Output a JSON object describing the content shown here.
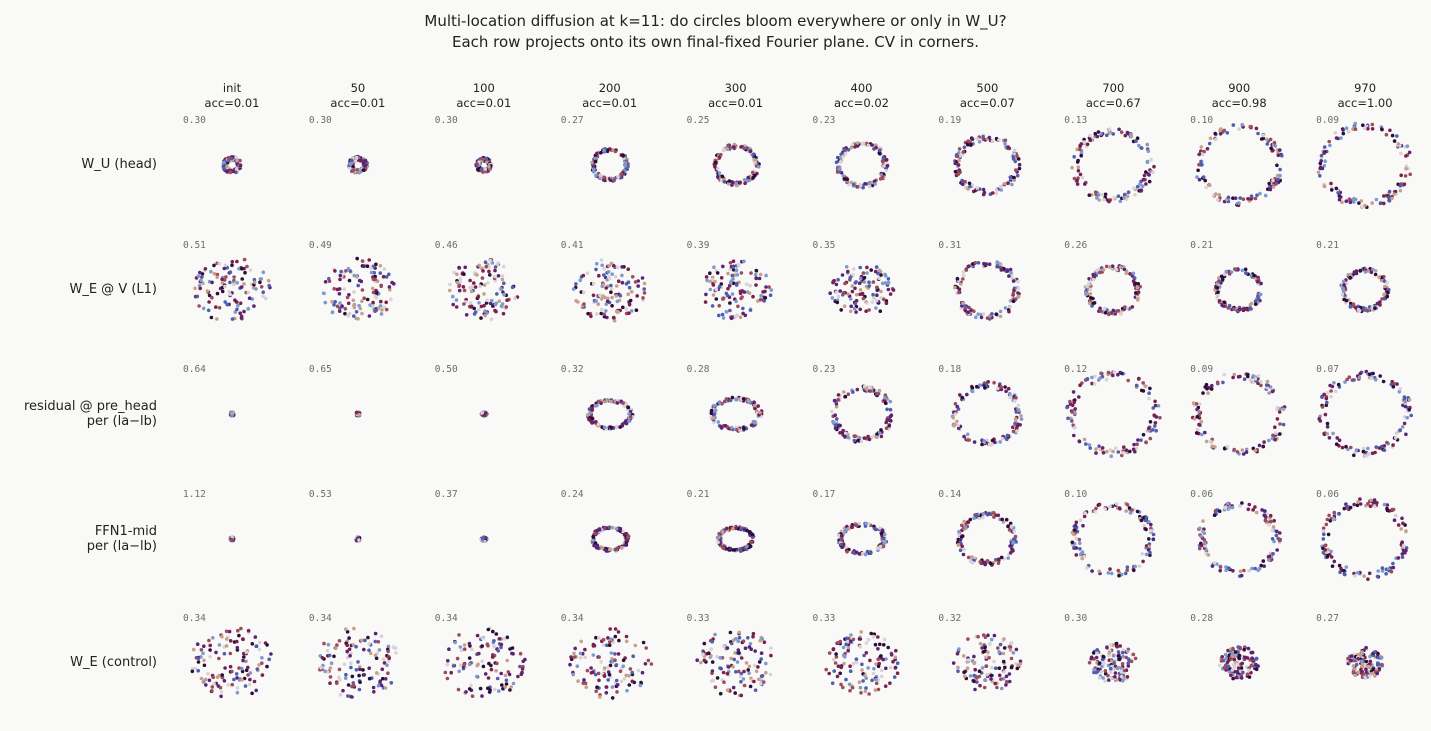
{
  "title_line1": "Multi-location diffusion at k=11: do circles bloom everywhere or only in W_U?",
  "title_line2": "Each row projects onto its own final-fixed Fourier plane. CV in corners.",
  "colors": {
    "background": "#f9f9f7",
    "palette": [
      "#2b0f3a",
      "#5a2476",
      "#9c4c5c",
      "#c8a08a",
      "#d9d2d6",
      "#7c9ad0",
      "#4c5fb0",
      "#7a1f4f"
    ]
  },
  "chart_data": {
    "type": "scatter",
    "columns": [
      {
        "step": "init",
        "acc": "acc=0.01"
      },
      {
        "step": "50",
        "acc": "acc=0.01"
      },
      {
        "step": "100",
        "acc": "acc=0.01"
      },
      {
        "step": "200",
        "acc": "acc=0.01"
      },
      {
        "step": "300",
        "acc": "acc=0.01"
      },
      {
        "step": "400",
        "acc": "acc=0.02"
      },
      {
        "step": "500",
        "acc": "acc=0.07"
      },
      {
        "step": "700",
        "acc": "acc=0.67"
      },
      {
        "step": "900",
        "acc": "acc=0.98"
      },
      {
        "step": "970",
        "acc": "acc=1.00"
      }
    ],
    "rows": [
      {
        "label_line1": "W_U (head)",
        "label_line2": "",
        "cv": [
          "0.30",
          "0.30",
          "0.30",
          "0.27",
          "0.25",
          "0.23",
          "0.19",
          "0.13",
          "0.10",
          "0.09"
        ]
      },
      {
        "label_line1": "W_E @ V (L1)",
        "label_line2": "",
        "cv": [
          "0.51",
          "0.49",
          "0.46",
          "0.41",
          "0.39",
          "0.35",
          "0.31",
          "0.26",
          "0.21",
          "0.21"
        ]
      },
      {
        "label_line1": "residual @ pre_head",
        "label_line2": "per (la−lb)",
        "cv": [
          "0.64",
          "0.65",
          "0.50",
          "0.32",
          "0.28",
          "0.23",
          "0.18",
          "0.12",
          "0.09",
          "0.07"
        ]
      },
      {
        "label_line1": "FFN1-mid",
        "label_line2": "per (la−lb)",
        "cv": [
          "1.12",
          "0.53",
          "0.37",
          "0.24",
          "0.21",
          "0.17",
          "0.14",
          "0.10",
          "0.06",
          "0.06"
        ]
      },
      {
        "label_line1": "W_E (control)",
        "label_line2": "",
        "cv": [
          "0.34",
          "0.34",
          "0.34",
          "0.34",
          "0.33",
          "0.33",
          "0.32",
          "0.30",
          "0.28",
          "0.27"
        ]
      }
    ],
    "points_per_panel": 121,
    "relative_radius": [
      [
        0.14,
        0.14,
        0.12,
        0.32,
        0.4,
        0.45,
        0.58,
        0.72,
        0.78,
        0.82
      ],
      [
        0.75,
        0.72,
        0.7,
        0.7,
        0.68,
        0.62,
        0.57,
        0.48,
        0.42,
        0.42
      ],
      [
        0.005,
        0.005,
        0.04,
        0.4,
        0.45,
        0.55,
        0.62,
        0.82,
        0.82,
        0.82
      ],
      [
        0.005,
        0.01,
        0.04,
        0.33,
        0.33,
        0.43,
        0.52,
        0.72,
        0.72,
        0.78
      ],
      [
        0.8,
        0.8,
        0.8,
        0.8,
        0.76,
        0.73,
        0.66,
        0.45,
        0.38,
        0.35
      ]
    ],
    "axes": false,
    "grid": false
  }
}
